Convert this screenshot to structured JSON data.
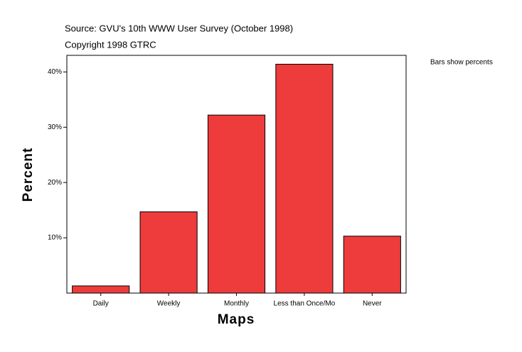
{
  "chart_data": {
    "type": "bar",
    "title": "Source: GVU's 10th WWW User Survey (October 1998)",
    "subtitle": "Copyright 1998 GTRC",
    "note": "Bars show percents",
    "x_label": "Maps",
    "y_label": "Percent",
    "categories": [
      "Daily",
      "Weekly",
      "Monthly",
      "Less than Once/Mo",
      "Never"
    ],
    "values": [
      1.3,
      14.7,
      32.2,
      41.4,
      10.3
    ],
    "color": "#ee3b3b",
    "ylim": [
      0,
      43
    ],
    "yticks": [
      {
        "value": 10,
        "label": "10%"
      },
      {
        "value": 20,
        "label": "20%"
      },
      {
        "value": 30,
        "label": "30%"
      },
      {
        "value": 40,
        "label": "40%"
      }
    ],
    "grid": false
  }
}
